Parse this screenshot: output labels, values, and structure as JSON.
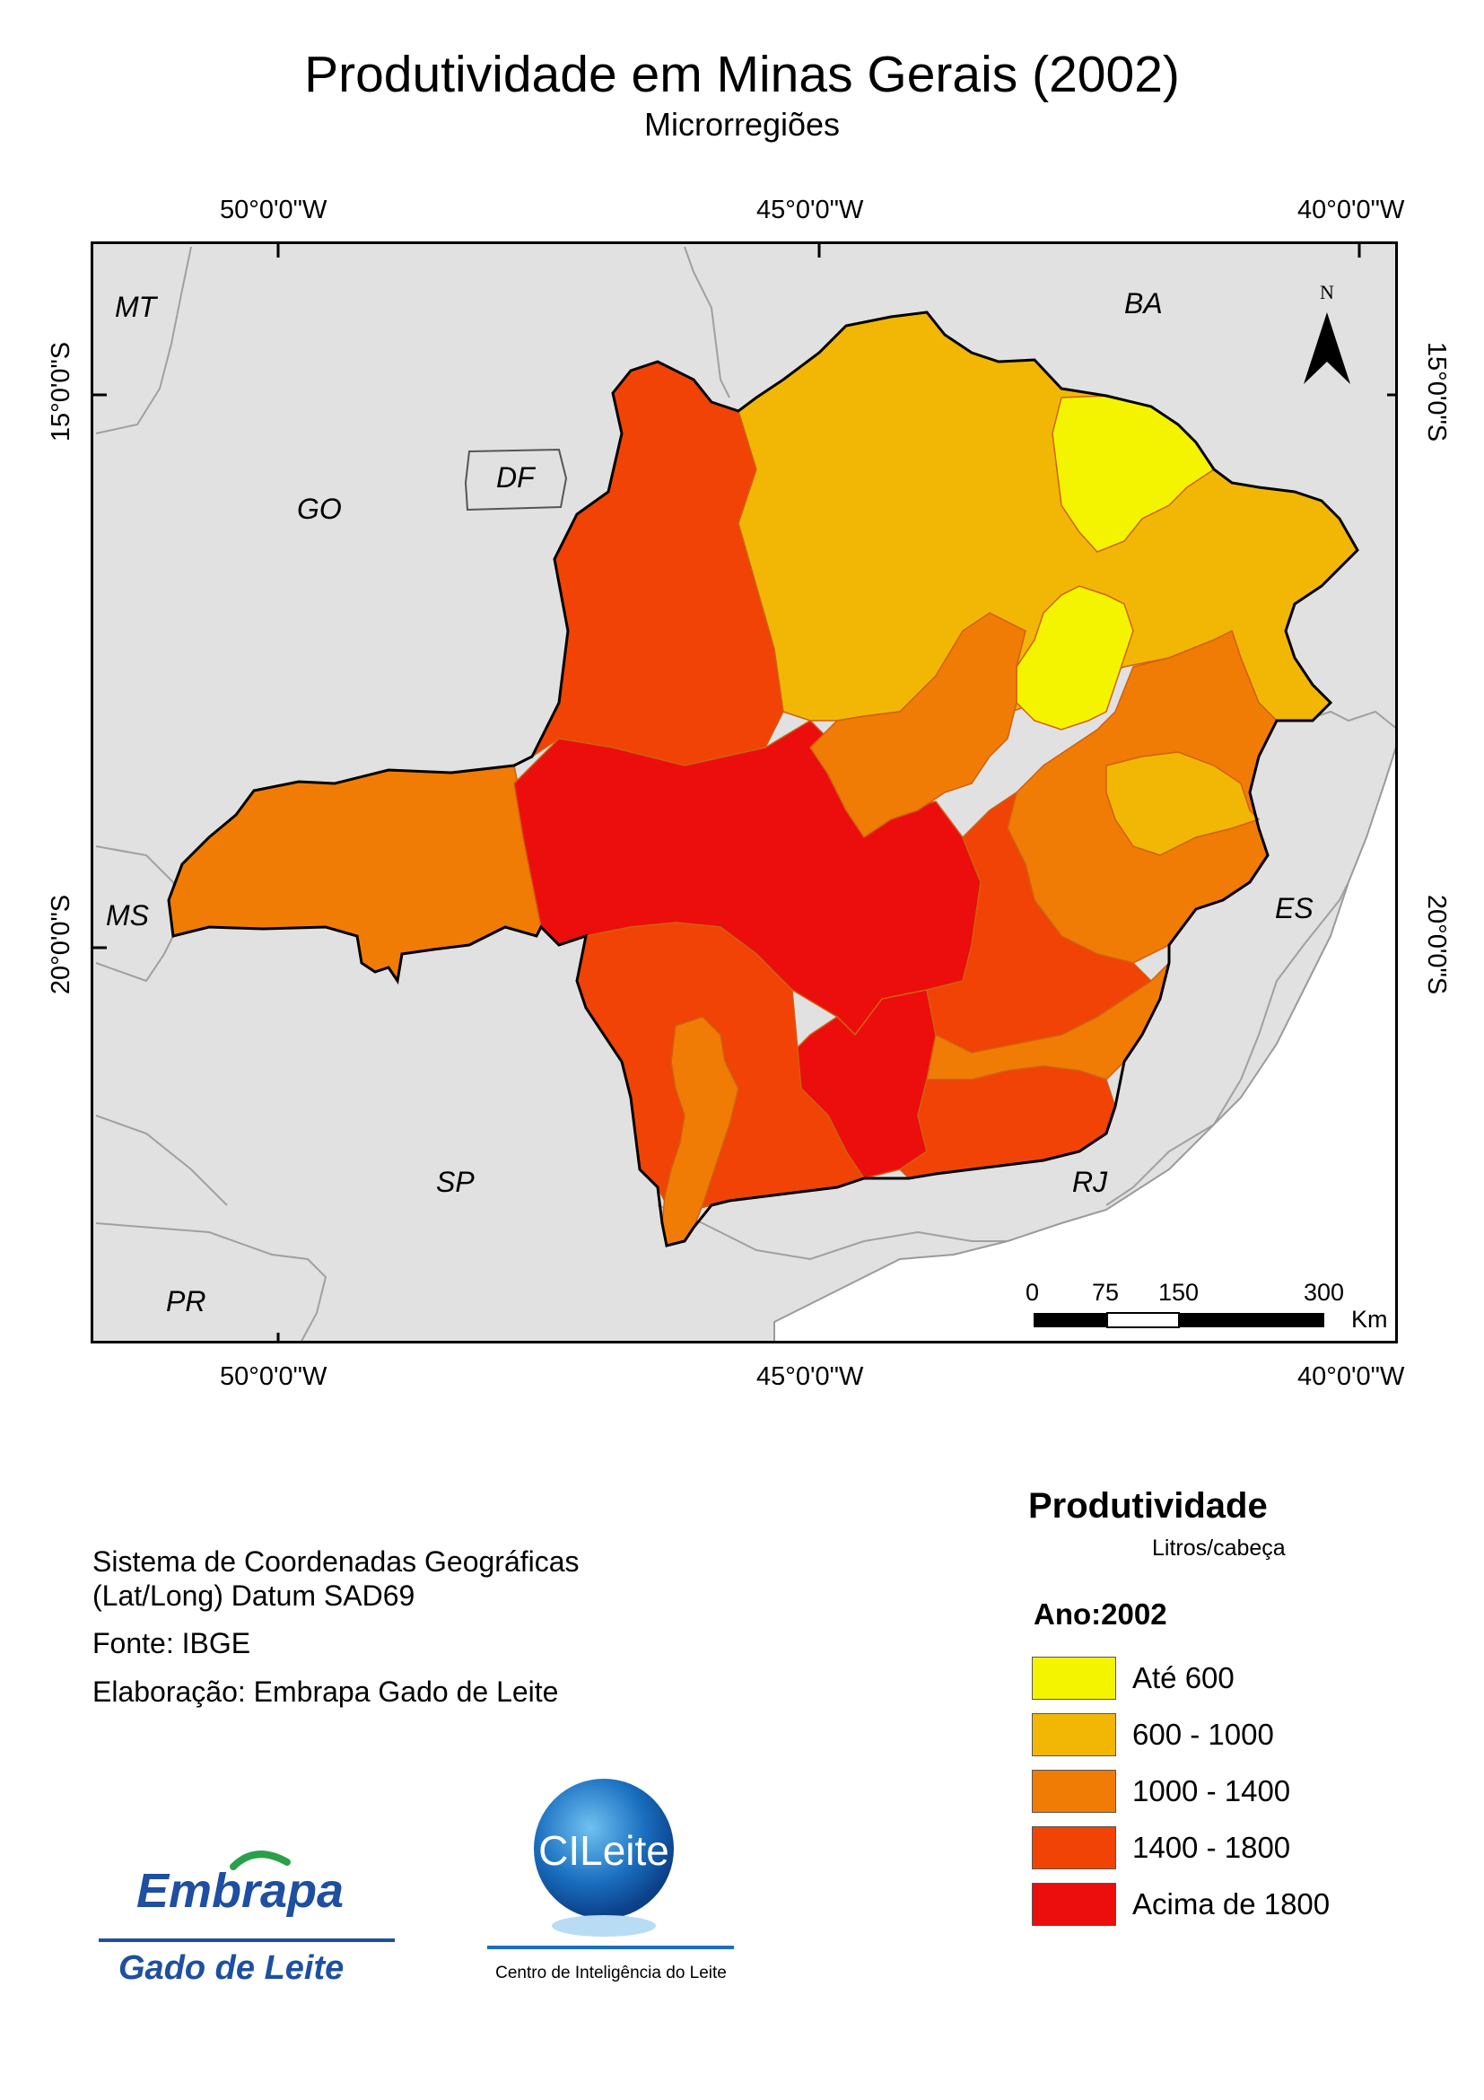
{
  "title": "Produtividade em Minas Gerais (2002)",
  "subtitle": "Microrregiões",
  "longitude_ticks": [
    "50°0'0\"W",
    "45°0'0\"W",
    "40°0'0\"W"
  ],
  "latitude_ticks": [
    "15°0'0\"S",
    "20°0'0\"S"
  ],
  "state_labels": [
    "MT",
    "BA",
    "GO",
    "DF",
    "MS",
    "ES",
    "SP",
    "RJ",
    "PR"
  ],
  "north_arrow": {
    "label": "N",
    "icon": "north-arrow-icon"
  },
  "scale_bar": {
    "labels": [
      "0",
      "75",
      "150",
      "300"
    ],
    "unit": "Km"
  },
  "info": {
    "line1": "Sistema de Coordenadas Geográficas",
    "line2": "(Lat/Long) Datum SAD69",
    "source": "Fonte: IBGE",
    "author": "Elaboração: Embrapa Gado de Leite"
  },
  "legend": {
    "title": "Produtividade",
    "unit": "Litros/cabeça",
    "year": "Ano:2002",
    "classes": [
      {
        "label": "Até 600",
        "color": "#f4f400"
      },
      {
        "label": "600 - 1000",
        "color": "#f2b705"
      },
      {
        "label": "1000 - 1400",
        "color": "#f07c05"
      },
      {
        "label": "1400 - 1800",
        "color": "#f04305"
      },
      {
        "label": "Acima de 1800",
        "color": "#ec0d0d"
      }
    ]
  },
  "logos": {
    "embrapa_word": "Embrapa",
    "embrapa_sub": "Gado de Leite",
    "cileite_word": "CILeite",
    "cileite_sub": "Centro de Inteligência do Leite"
  },
  "colors": {
    "background": "#e1e1e1",
    "border_lines": "#a0a0a0"
  }
}
